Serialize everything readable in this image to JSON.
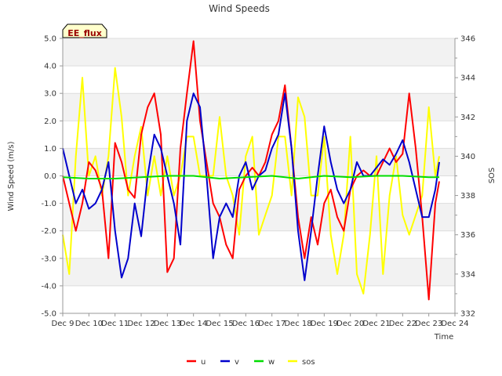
{
  "chart_data": {
    "type": "line",
    "title": "Wind Speeds",
    "badge": "EE_flux",
    "xlabel": "Time",
    "ylabel": "Wind Speed (m/s)",
    "y2label": "SOS",
    "xlim": [
      0,
      15
    ],
    "ylim": [
      -5,
      5
    ],
    "y2lim": [
      332,
      346
    ],
    "x_tick_labels": [
      "Dec 9",
      "Dec 10",
      "Dec 11",
      "Dec 12",
      "Dec 13",
      "Dec 14",
      "Dec 15",
      "Dec 16",
      "Dec 17",
      "Dec 18",
      "Dec 19",
      "Dec 20",
      "Dec 21",
      "Dec 22",
      "Dec 23",
      "Dec 24"
    ],
    "y_tick_labels": [
      "-5.0",
      "-4.0",
      "-3.0",
      "-2.0",
      "-1.0",
      "0.0",
      "1.0",
      "2.0",
      "3.0",
      "4.0",
      "5.0"
    ],
    "y2_tick_labels": [
      "332",
      "334",
      "336",
      "338",
      "340",
      "342",
      "344",
      "346"
    ],
    "series": [
      {
        "name": "u",
        "color": "#ff0000",
        "axis": "left",
        "x": [
          0.0,
          0.25,
          0.5,
          0.75,
          1.0,
          1.25,
          1.5,
          1.75,
          2.0,
          2.25,
          2.5,
          2.75,
          3.0,
          3.25,
          3.5,
          3.75,
          4.0,
          4.25,
          4.5,
          4.75,
          5.0,
          5.25,
          5.5,
          5.75,
          6.0,
          6.25,
          6.5,
          6.75,
          7.0,
          7.25,
          7.5,
          7.75,
          8.0,
          8.25,
          8.5,
          8.75,
          9.0,
          9.25,
          9.5,
          9.75,
          10.0,
          10.25,
          10.5,
          10.75,
          11.0,
          11.25,
          11.5,
          11.75,
          12.0,
          12.25,
          12.5,
          12.75,
          13.0,
          13.25,
          13.5,
          13.75,
          14.0,
          14.25,
          14.4
        ],
        "values": [
          0.0,
          -1.0,
          -2.0,
          -1.0,
          0.5,
          0.2,
          -0.5,
          -3.0,
          1.2,
          0.5,
          -0.5,
          -0.8,
          1.5,
          2.5,
          3.0,
          1.5,
          -3.5,
          -3.0,
          1.0,
          3.0,
          4.9,
          2.0,
          0.5,
          -1.0,
          -1.5,
          -2.5,
          -3.0,
          -0.5,
          0.0,
          0.3,
          0.0,
          0.5,
          1.5,
          2.0,
          3.3,
          1.0,
          -1.5,
          -3.0,
          -1.5,
          -2.5,
          -1.0,
          -0.5,
          -1.5,
          -2.0,
          -0.5,
          0.0,
          0.2,
          0.0,
          0.0,
          0.5,
          1.0,
          0.5,
          0.8,
          3.0,
          1.0,
          -1.5,
          -4.5,
          -1.0,
          -0.2
        ]
      },
      {
        "name": "v",
        "color": "#0000cc",
        "axis": "left",
        "x": [
          0.0,
          0.25,
          0.5,
          0.75,
          1.0,
          1.25,
          1.5,
          1.75,
          2.0,
          2.25,
          2.5,
          2.75,
          3.0,
          3.25,
          3.5,
          3.75,
          4.0,
          4.25,
          4.5,
          4.75,
          5.0,
          5.25,
          5.5,
          5.75,
          6.0,
          6.25,
          6.5,
          6.75,
          7.0,
          7.25,
          7.5,
          7.75,
          8.0,
          8.25,
          8.5,
          8.75,
          9.0,
          9.25,
          9.5,
          9.75,
          10.0,
          10.25,
          10.5,
          10.75,
          11.0,
          11.25,
          11.5,
          11.75,
          12.0,
          12.25,
          12.5,
          12.75,
          13.0,
          13.25,
          13.5,
          13.75,
          14.0,
          14.25,
          14.4
        ],
        "values": [
          1.0,
          0.0,
          -1.0,
          -0.5,
          -1.2,
          -1.0,
          -0.5,
          0.5,
          -2.0,
          -3.7,
          -3.0,
          -1.0,
          -2.2,
          0.0,
          1.5,
          1.0,
          0.0,
          -1.0,
          -2.5,
          2.0,
          3.0,
          2.5,
          0.0,
          -3.0,
          -1.5,
          -1.0,
          -1.5,
          0.0,
          0.5,
          -0.5,
          0.0,
          0.2,
          1.0,
          1.5,
          3.0,
          1.0,
          -2.0,
          -3.8,
          -2.0,
          0.0,
          1.8,
          0.5,
          -0.5,
          -1.0,
          -0.5,
          0.5,
          0.0,
          0.0,
          0.3,
          0.6,
          0.4,
          0.8,
          1.3,
          0.5,
          -0.5,
          -1.5,
          -1.5,
          -0.5,
          0.5
        ]
      },
      {
        "name": "w",
        "color": "#00dd00",
        "axis": "left",
        "x": [
          0.0,
          1.0,
          2.0,
          3.0,
          4.0,
          5.0,
          6.0,
          7.0,
          8.0,
          9.0,
          10.0,
          11.0,
          12.0,
          13.0,
          14.0,
          14.4
        ],
        "values": [
          -0.05,
          -0.1,
          -0.1,
          -0.05,
          0.0,
          0.0,
          -0.1,
          -0.05,
          0.0,
          -0.1,
          0.0,
          -0.05,
          0.0,
          0.0,
          -0.05,
          -0.05
        ]
      },
      {
        "name": "sos",
        "color": "#ffff00",
        "axis": "right",
        "x": [
          0.0,
          0.25,
          0.5,
          0.75,
          1.0,
          1.25,
          1.5,
          1.75,
          2.0,
          2.25,
          2.5,
          2.75,
          3.0,
          3.25,
          3.5,
          3.75,
          4.0,
          4.25,
          4.5,
          4.75,
          5.0,
          5.25,
          5.5,
          5.75,
          6.0,
          6.25,
          6.5,
          6.75,
          7.0,
          7.25,
          7.5,
          7.75,
          8.0,
          8.25,
          8.5,
          8.75,
          9.0,
          9.25,
          9.5,
          9.75,
          10.0,
          10.25,
          10.5,
          10.75,
          11.0,
          11.25,
          11.5,
          11.75,
          12.0,
          12.25,
          12.5,
          12.75,
          13.0,
          13.25,
          13.5,
          13.75,
          14.0,
          14.25,
          14.4
        ],
        "values": [
          336,
          334,
          340,
          344,
          339,
          340,
          338,
          340,
          344.5,
          342,
          338,
          340,
          341.5,
          338,
          340,
          338,
          340,
          338,
          339,
          341,
          341,
          339,
          339,
          339,
          342,
          339,
          338,
          336,
          340,
          341,
          336,
          337,
          338,
          341,
          341,
          338,
          343,
          342,
          338,
          338,
          341,
          336,
          334,
          336,
          341,
          334,
          333,
          336,
          340,
          334,
          338,
          340,
          337,
          336,
          337,
          338,
          342.5,
          339,
          340
        ]
      }
    ]
  }
}
